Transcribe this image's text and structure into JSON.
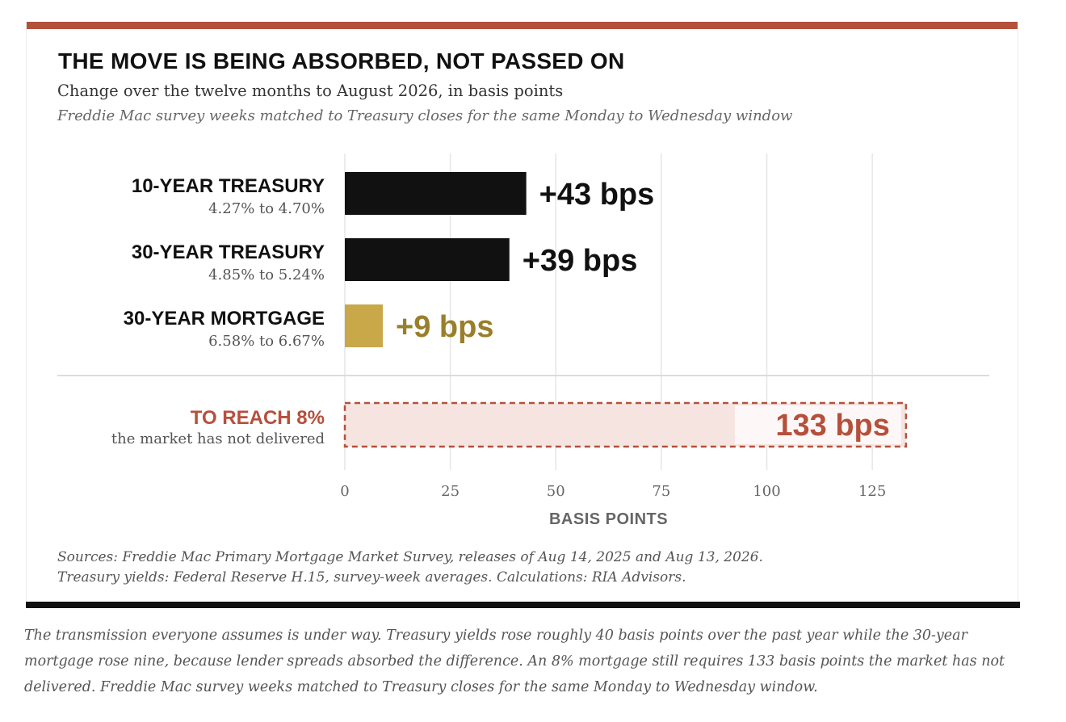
{
  "title": "THE MOVE IS BEING ABSORBED, NOT PASSED ON",
  "subtitle": "Change over the twelve months to August 2026, in basis points",
  "note": "Freddie Mac survey weeks matched to Treasury closes for the same Monday to Wednesday window",
  "colors": {
    "accent": "#b5503c",
    "treasury_bar": "#111111",
    "mortgage_bar": "#c9a84a",
    "mortgage_text": "#9a7f2a",
    "target_fill": "#f5e4e0",
    "grid": "#e6e6e6"
  },
  "chart_data": {
    "type": "bar",
    "orientation": "horizontal",
    "categories": [
      "10-YEAR TREASURY",
      "30-YEAR TREASURY",
      "30-YEAR MORTGAGE"
    ],
    "category_subtitles": [
      "4.27% to 4.70%",
      "4.85% to 5.24%",
      "6.58% to 6.67%"
    ],
    "values": [
      43,
      39,
      9
    ],
    "value_labels": [
      "+43 bps",
      "+39 bps",
      "+9 bps"
    ],
    "target": {
      "label": "TO REACH 8%",
      "sublabel": "the market has not delivered",
      "value": 133,
      "value_label": "133 bps"
    },
    "xlabel": "BASIS POINTS",
    "xlim": [
      0,
      133
    ],
    "xticks": [
      0,
      25,
      50,
      75,
      100,
      125
    ],
    "xtick_labels": [
      "0",
      "25",
      "50",
      "75",
      "100",
      "125"
    ],
    "grid": true
  },
  "sources": {
    "line1": "Sources: Freddie Mac Primary Mortgage Market Survey, releases of Aug 14, 2025 and Aug 13, 2026.",
    "line2": "Treasury yields: Federal Reserve H.15, survey-week averages. Calculations: RIA Advisors."
  },
  "caption": "The transmission everyone assumes is under way. Treasury yields rose roughly 40 basis points over the past year while the 30-year mortgage rose nine, because lender spreads absorbed the difference. An 8% mortgage still requires 133 basis points the market has not delivered. Freddie Mac survey weeks matched to Treasury closes for the same Monday to Wednesday window."
}
